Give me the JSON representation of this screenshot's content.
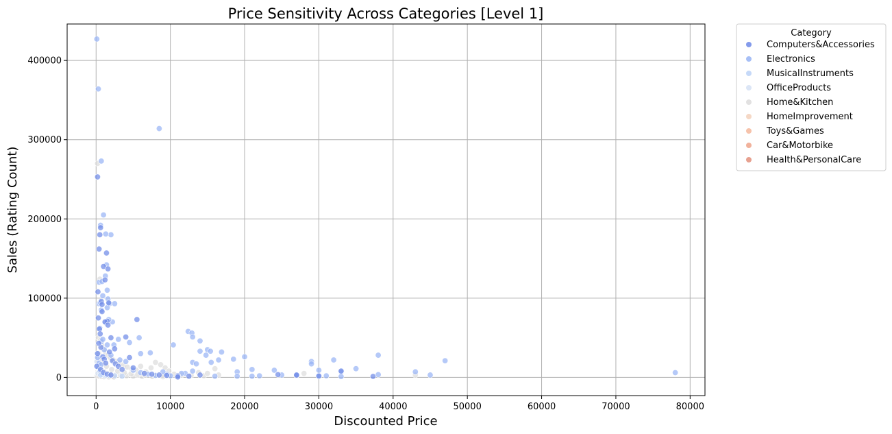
{
  "chart_data": {
    "type": "scatter",
    "title": "Price Sensitivity Across Categories [Level 1]",
    "xlabel": "Discounted Price",
    "ylabel": "Sales (Rating Count)",
    "xlim": [
      -3900,
      82000
    ],
    "ylim": [
      -23000,
      446000
    ],
    "xticks": [
      0,
      10000,
      20000,
      30000,
      40000,
      50000,
      60000,
      70000,
      80000
    ],
    "yticks": [
      0,
      100000,
      200000,
      300000,
      400000
    ],
    "grid": true,
    "legend": {
      "title": "Category",
      "placement": "outside-top-right"
    },
    "series": [
      {
        "name": "Computers&Accessories",
        "color": "#6f8ae8",
        "points": [
          [
            200,
            253000
          ],
          [
            250,
            108000
          ],
          [
            400,
            162000
          ],
          [
            500,
            180000
          ],
          [
            600,
            189000
          ],
          [
            700,
            96000
          ],
          [
            800,
            83000
          ],
          [
            1000,
            140000
          ],
          [
            1200,
            123000
          ],
          [
            1400,
            157000
          ],
          [
            1500,
            71000
          ],
          [
            1600,
            137000
          ],
          [
            1700,
            94000
          ],
          [
            2000,
            50000
          ],
          [
            300,
            75000
          ],
          [
            450,
            61000
          ],
          [
            550,
            55000
          ],
          [
            650,
            38000
          ],
          [
            900,
            26000
          ],
          [
            1100,
            23000
          ],
          [
            1300,
            18000
          ],
          [
            1800,
            32000
          ],
          [
            2200,
            21000
          ],
          [
            2600,
            17000
          ],
          [
            3000,
            14000
          ],
          [
            3500,
            10000
          ],
          [
            4000,
            51000
          ],
          [
            4500,
            25000
          ],
          [
            5000,
            12000
          ],
          [
            5500,
            73000
          ],
          [
            6500,
            5000
          ],
          [
            7500,
            4000
          ],
          [
            8500,
            3000
          ],
          [
            9500,
            2500
          ],
          [
            100,
            14000
          ],
          [
            200,
            30000
          ],
          [
            350,
            43000
          ],
          [
            800,
            92000
          ],
          [
            1200,
            70000
          ],
          [
            1600,
            66000
          ],
          [
            2500,
            36000
          ],
          [
            600,
            10000
          ],
          [
            1000,
            6000
          ],
          [
            1500,
            4000
          ],
          [
            2000,
            3000
          ],
          [
            11000,
            2000
          ],
          [
            12500,
            1500
          ],
          [
            14000,
            3000
          ],
          [
            24500,
            3500
          ],
          [
            27000,
            2500
          ],
          [
            30000,
            1800
          ],
          [
            33000,
            8000
          ],
          [
            37300,
            1200
          ],
          [
            11000,
            500
          ],
          [
            27000,
            3000
          ]
        ]
      },
      {
        "name": "Electronics",
        "color": "#98b4f5",
        "points": [
          [
            100,
            427000
          ],
          [
            300,
            364000
          ],
          [
            8500,
            314000
          ],
          [
            700,
            273000
          ],
          [
            1000,
            205000
          ],
          [
            600,
            192000
          ],
          [
            2000,
            180000
          ],
          [
            1300,
            181000
          ],
          [
            1400,
            142000
          ],
          [
            1250,
            128000
          ],
          [
            1500,
            110000
          ],
          [
            900,
            103000
          ],
          [
            1600,
            99000
          ],
          [
            2500,
            93000
          ],
          [
            1800,
            93000
          ],
          [
            400,
            93000
          ],
          [
            600,
            94000
          ],
          [
            1500,
            88000
          ],
          [
            700,
            85000
          ],
          [
            2200,
            70000
          ],
          [
            1300,
            69000
          ],
          [
            1700,
            73000
          ],
          [
            400,
            120000
          ],
          [
            800,
            121000
          ],
          [
            5800,
            50000
          ],
          [
            4500,
            44000
          ],
          [
            7300,
            31000
          ],
          [
            6000,
            30000
          ],
          [
            3000,
            48000
          ],
          [
            2400,
            41000
          ],
          [
            10400,
            41000
          ],
          [
            12400,
            58000
          ],
          [
            12900,
            56000
          ],
          [
            13000,
            51000
          ],
          [
            14000,
            46000
          ],
          [
            15000,
            35000
          ],
          [
            16900,
            32000
          ],
          [
            15400,
            33000
          ],
          [
            14000,
            33000
          ],
          [
            18500,
            23000
          ],
          [
            20000,
            26000
          ],
          [
            14800,
            28000
          ],
          [
            16500,
            22000
          ],
          [
            13000,
            19000
          ],
          [
            13500,
            17000
          ],
          [
            15500,
            19000
          ],
          [
            21000,
            10000
          ],
          [
            19000,
            7000
          ],
          [
            24000,
            9000
          ],
          [
            29000,
            20000
          ],
          [
            29000,
            17000
          ],
          [
            30000,
            9000
          ],
          [
            32000,
            22000
          ],
          [
            33000,
            7000
          ],
          [
            35000,
            11000
          ],
          [
            38000,
            28000
          ],
          [
            43000,
            7000
          ],
          [
            45000,
            3000
          ],
          [
            47000,
            21000
          ],
          [
            78000,
            6000
          ],
          [
            13000,
            8000
          ],
          [
            12000,
            5000
          ],
          [
            11500,
            5000
          ],
          [
            9500,
            4000
          ],
          [
            16000,
            1500
          ],
          [
            19000,
            1500
          ],
          [
            21000,
            1500
          ],
          [
            22000,
            2000
          ],
          [
            25000,
            3000
          ],
          [
            30000,
            1500
          ],
          [
            31000,
            2000
          ],
          [
            33000,
            1000
          ],
          [
            38000,
            3500
          ],
          [
            500,
            62000
          ],
          [
            700,
            45000
          ],
          [
            900,
            48000
          ],
          [
            1100,
            35000
          ],
          [
            1500,
            41000
          ],
          [
            2000,
            28000
          ],
          [
            3200,
            22000
          ],
          [
            4000,
            20000
          ],
          [
            5000,
            9000
          ],
          [
            6000,
            6000
          ],
          [
            7000,
            4000
          ],
          [
            8000,
            2500
          ],
          [
            9000,
            7000
          ],
          [
            10000,
            2000
          ],
          [
            200,
            25000
          ],
          [
            400,
            18000
          ],
          [
            650,
            16000
          ]
        ]
      },
      {
        "name": "MusicalInstruments",
        "color": "#bcd2f7",
        "points": [
          [
            300,
            12000
          ],
          [
            500,
            8000
          ],
          [
            800,
            5000
          ],
          [
            1200,
            4000
          ],
          [
            1800,
            2500
          ],
          [
            2500,
            2000
          ],
          [
            3500,
            1500
          ],
          [
            600,
            3000
          ]
        ]
      },
      {
        "name": "OfficeProducts",
        "color": "#d6e2f4",
        "points": [
          [
            100,
            20000
          ],
          [
            200,
            15000
          ],
          [
            300,
            11000
          ],
          [
            400,
            8000
          ],
          [
            500,
            6000
          ],
          [
            700,
            4000
          ],
          [
            900,
            3000
          ],
          [
            1200,
            2000
          ],
          [
            150,
            30000
          ],
          [
            250,
            5000
          ]
        ]
      },
      {
        "name": "Home&Kitchen",
        "color": "#dddcdc",
        "points": [
          [
            200,
            270000
          ],
          [
            500,
            124000
          ],
          [
            300,
            50000
          ],
          [
            600,
            47000
          ],
          [
            800,
            40000
          ],
          [
            1000,
            35000
          ],
          [
            1300,
            32000
          ],
          [
            1600,
            28000
          ],
          [
            1900,
            25000
          ],
          [
            2300,
            22000
          ],
          [
            2700,
            20000
          ],
          [
            3200,
            18000
          ],
          [
            3700,
            15000
          ],
          [
            4200,
            13000
          ],
          [
            4800,
            11000
          ],
          [
            5400,
            9000
          ],
          [
            6000,
            14000
          ],
          [
            6700,
            7000
          ],
          [
            7400,
            12000
          ],
          [
            8000,
            19000
          ],
          [
            8700,
            16000
          ],
          [
            9300,
            12000
          ],
          [
            9800,
            8000
          ],
          [
            10500,
            4000
          ],
          [
            11500,
            3000
          ],
          [
            12800,
            2500
          ],
          [
            14500,
            2000
          ],
          [
            16000,
            11000
          ],
          [
            28000,
            5000
          ],
          [
            43000,
            3000
          ],
          [
            400,
            12000
          ],
          [
            700,
            9000
          ],
          [
            1100,
            7000
          ],
          [
            1500,
            5000
          ],
          [
            2000,
            4000
          ],
          [
            2600,
            3000
          ],
          [
            3300,
            2500
          ],
          [
            4100,
            2000
          ],
          [
            5000,
            1500
          ],
          [
            6200,
            1200
          ],
          [
            7600,
            1000
          ],
          [
            9000,
            800
          ],
          [
            350,
            30000
          ],
          [
            550,
            22000
          ],
          [
            900,
            18000
          ],
          [
            1400,
            14000
          ],
          [
            2100,
            10000
          ],
          [
            2900,
            8000
          ],
          [
            3800,
            6000
          ],
          [
            4700,
            4500
          ],
          [
            5600,
            3500
          ],
          [
            6600,
            2800
          ],
          [
            7900,
            2200
          ],
          [
            8900,
            1800
          ],
          [
            150,
            2000
          ],
          [
            450,
            1500
          ],
          [
            750,
            1000
          ],
          [
            1050,
            800
          ],
          [
            1700,
            600
          ],
          [
            2400,
            500
          ],
          [
            13800,
            6000
          ],
          [
            15000,
            5000
          ],
          [
            16500,
            3000
          ]
        ]
      },
      {
        "name": "HomeImprovement",
        "color": "#f3d1bc",
        "points": [
          [
            300,
            1500
          ],
          [
            800,
            900
          ]
        ]
      },
      {
        "name": "Toys&Games",
        "color": "#f4b99c",
        "points": [
          [
            150,
            15000
          ]
        ]
      },
      {
        "name": "Car&Motorbike",
        "color": "#eea58b",
        "points": [
          [
            2300,
            1000
          ]
        ]
      },
      {
        "name": "Health&PersonalCare",
        "color": "#e3917c",
        "points": [
          [
            1900,
            3500
          ]
        ]
      }
    ]
  }
}
